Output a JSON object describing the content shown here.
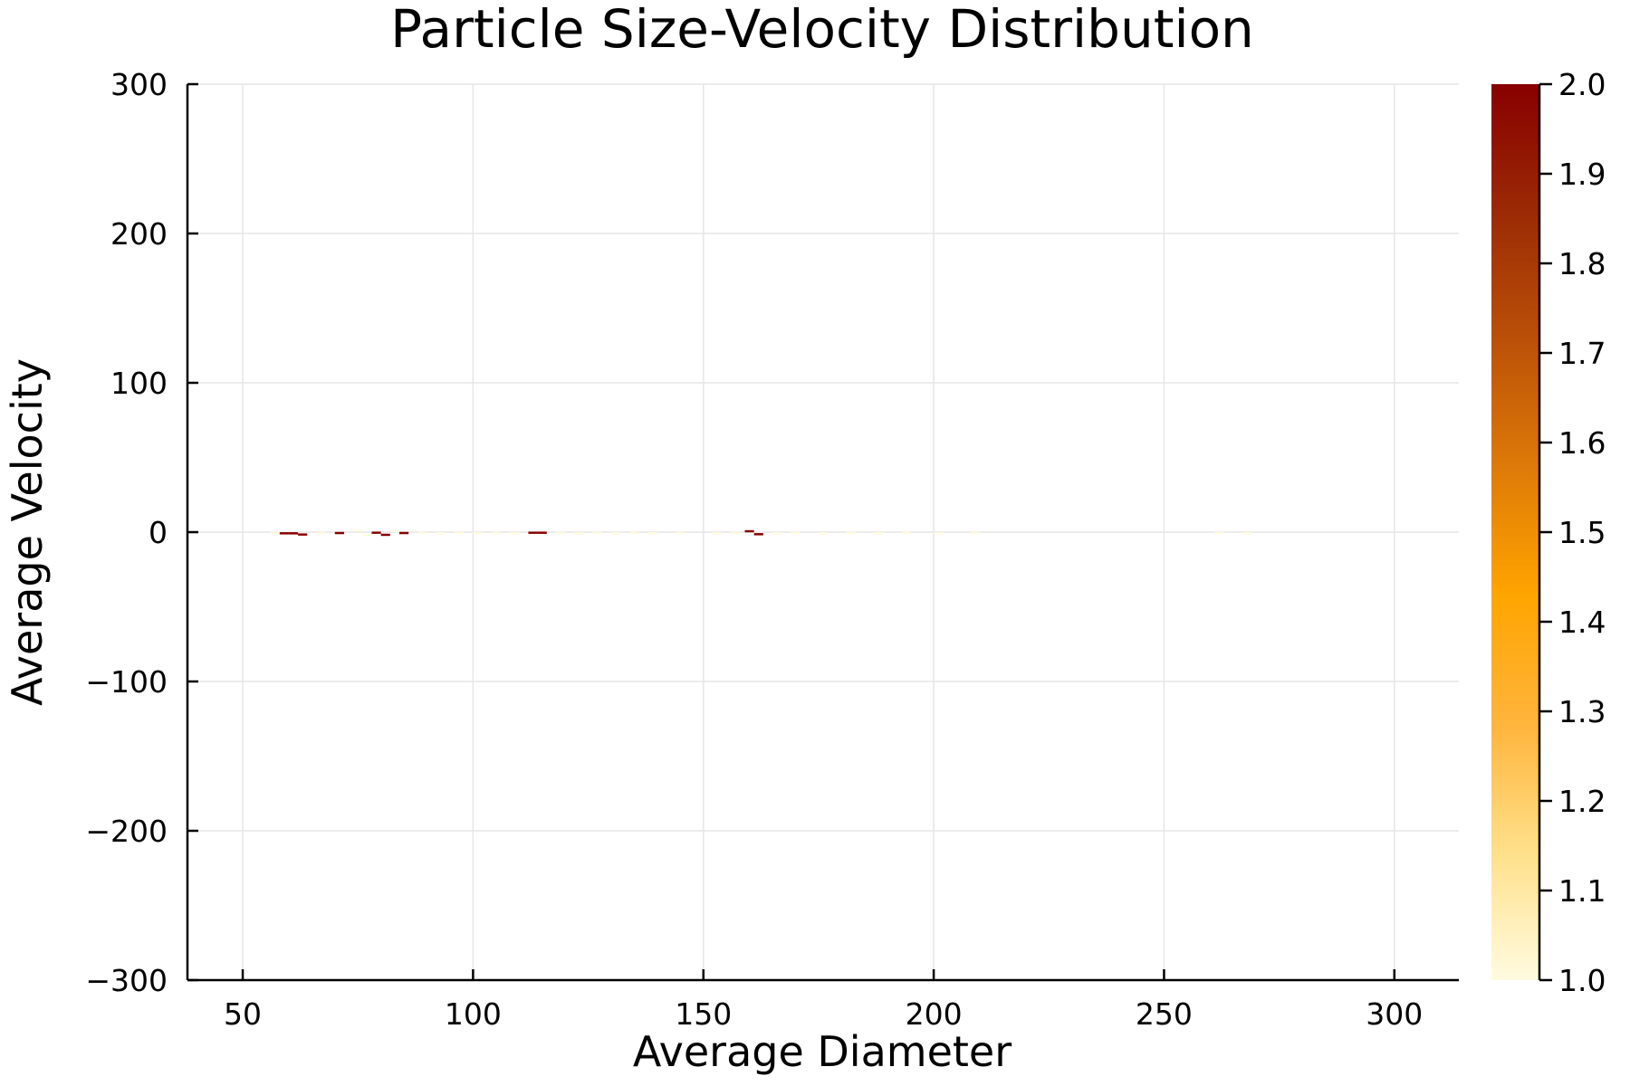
{
  "chart_data": {
    "type": "heatmap",
    "title": "Particle Size-Velocity Distribution",
    "xlabel": "Average Diameter",
    "ylabel": "Average Velocity",
    "xlim": [
      38,
      314
    ],
    "ylim": [
      -300,
      300
    ],
    "xticks": [
      50,
      100,
      150,
      200,
      250,
      300
    ],
    "yticks": [
      -300,
      -200,
      -100,
      0,
      100,
      200,
      300
    ],
    "xtick_labels": [
      "50",
      "100",
      "150",
      "200",
      "250",
      "300"
    ],
    "ytick_labels": [
      "−300",
      "−200",
      "−100",
      "0",
      "100",
      "200",
      "300"
    ],
    "grid": true,
    "colorbar": {
      "range": [
        1.0,
        2.0
      ],
      "ticks": [
        1.0,
        1.1,
        1.2,
        1.3,
        1.4,
        1.5,
        1.6,
        1.7,
        1.8,
        1.9,
        2.0
      ],
      "tick_labels": [
        "1.0",
        "1.1",
        "1.2",
        "1.3",
        "1.4",
        "1.5",
        "1.6",
        "1.7",
        "1.8",
        "1.9",
        "2.0"
      ],
      "colors": [
        "#fffbe0",
        "#ffe08a",
        "#ffb43c",
        "#ffa500",
        "#de7a08",
        "#bb5008",
        "#9b2a05",
        "#880000"
      ]
    },
    "bin_size": [
      2.0,
      1.5
    ],
    "cells": [
      {
        "x": 59,
        "y": -0.8,
        "count": 2
      },
      {
        "x": 61,
        "y": -0.8,
        "count": 2
      },
      {
        "x": 63,
        "y": -1.6,
        "count": 2
      },
      {
        "x": 71,
        "y": -0.6,
        "count": 2
      },
      {
        "x": 79,
        "y": -0.4,
        "count": 2
      },
      {
        "x": 81,
        "y": -1.8,
        "count": 2
      },
      {
        "x": 85,
        "y": -0.6,
        "count": 2
      },
      {
        "x": 113,
        "y": -0.4,
        "count": 2
      },
      {
        "x": 115,
        "y": -0.4,
        "count": 2
      },
      {
        "x": 160,
        "y": 0.6,
        "count": 2
      },
      {
        "x": 162,
        "y": -1.4,
        "count": 2
      },
      {
        "x": 57,
        "y": -0.6,
        "count": 1
      },
      {
        "x": 67,
        "y": -0.6,
        "count": 1
      },
      {
        "x": 75,
        "y": 1.0,
        "count": 1
      },
      {
        "x": 77,
        "y": -2.0,
        "count": 1
      },
      {
        "x": 83,
        "y": 0.8,
        "count": 1
      },
      {
        "x": 89,
        "y": -0.6,
        "count": 1
      },
      {
        "x": 93,
        "y": -0.8,
        "count": 1
      },
      {
        "x": 97,
        "y": -0.6,
        "count": 1
      },
      {
        "x": 101,
        "y": -0.8,
        "count": 1
      },
      {
        "x": 105,
        "y": -0.6,
        "count": 1
      },
      {
        "x": 109,
        "y": -0.8,
        "count": 1
      },
      {
        "x": 119,
        "y": -0.6,
        "count": 1
      },
      {
        "x": 123,
        "y": -0.8,
        "count": 1
      },
      {
        "x": 127,
        "y": -0.6,
        "count": 1
      },
      {
        "x": 131,
        "y": -0.8,
        "count": 1
      },
      {
        "x": 135,
        "y": -0.6,
        "count": 1
      },
      {
        "x": 139,
        "y": -0.8,
        "count": 1
      },
      {
        "x": 145,
        "y": -0.6,
        "count": 1
      },
      {
        "x": 153,
        "y": -0.8,
        "count": 1
      },
      {
        "x": 157,
        "y": -0.6,
        "count": 1
      },
      {
        "x": 166,
        "y": -0.8,
        "count": 1
      },
      {
        "x": 170,
        "y": -0.6,
        "count": 1
      },
      {
        "x": 176,
        "y": -0.8,
        "count": 1
      },
      {
        "x": 182,
        "y": -0.6,
        "count": 1
      },
      {
        "x": 188,
        "y": -0.8,
        "count": 1
      },
      {
        "x": 194,
        "y": -0.6,
        "count": 1
      },
      {
        "x": 201,
        "y": -0.8,
        "count": 1
      },
      {
        "x": 209,
        "y": -0.6,
        "count": 1
      },
      {
        "x": 262,
        "y": -0.6,
        "count": 1
      },
      {
        "x": 268,
        "y": -0.8,
        "count": 1
      }
    ]
  }
}
